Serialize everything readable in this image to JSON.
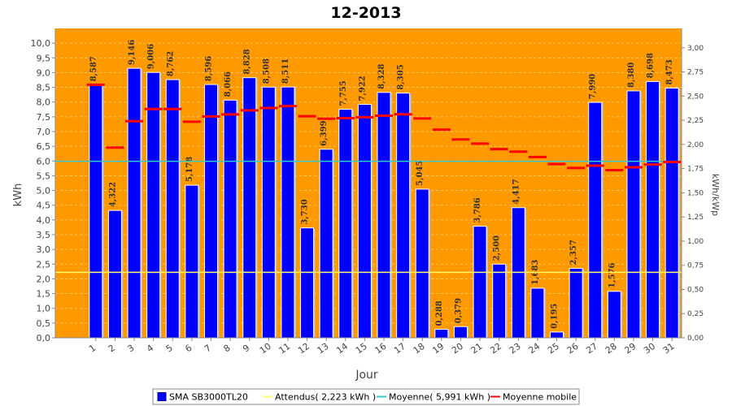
{
  "chart_data": {
    "type": "bar",
    "title": "12-2013",
    "xlabel": "Jour",
    "ylabel": "kWh",
    "y2label": "kWh/kWp",
    "ylim": [
      0,
      10.5
    ],
    "y2lim": [
      0,
      3.2
    ],
    "grid": true,
    "legend_position": "bottom",
    "categories": [
      "1",
      "2",
      "3",
      "4",
      "5",
      "6",
      "7",
      "8",
      "9",
      "10",
      "11",
      "12",
      "13",
      "14",
      "15",
      "16",
      "17",
      "18",
      "19",
      "20",
      "21",
      "22",
      "23",
      "24",
      "25",
      "26",
      "27",
      "28",
      "29",
      "30",
      "31"
    ],
    "series": [
      {
        "name": "SMA SB3000TL20",
        "type": "bar",
        "color": "#0000ff",
        "values": [
          8.587,
          4.322,
          9.146,
          9.006,
          8.762,
          5.178,
          8.596,
          8.066,
          8.828,
          8.508,
          8.511,
          3.73,
          6.399,
          7.755,
          7.922,
          8.328,
          8.305,
          5.045,
          0.288,
          0.379,
          3.786,
          2.5,
          4.417,
          1.683,
          0.195,
          2.357,
          7.99,
          1.576,
          8.38,
          8.698,
          8.473
        ],
        "data_labels": [
          "8,587",
          "4,322",
          "9,146",
          "9,006",
          "8,762",
          "5,178",
          "8,596",
          "8,066",
          "8,828",
          "8,508",
          "8,511",
          "3,730",
          "6,399",
          "7,755",
          "7,922",
          "8,328",
          "8,305",
          "5,045",
          "0,288",
          "0,379",
          "3,786",
          "2,500",
          "4,417",
          "1,683",
          "0,195",
          "2,357",
          "7,990",
          "1,576",
          "8,380",
          "8,698",
          "8,473"
        ]
      },
      {
        "name": "Attendus( 2,223 kWh )",
        "type": "line",
        "color": "#ffff66",
        "value": 2.223
      },
      {
        "name": "Moyenne( 5,991 kWh )",
        "type": "line",
        "color": "#33cccc",
        "value": 5.991
      },
      {
        "name": "Moyenne mobile",
        "type": "marker",
        "color": "#ff0000",
        "values": [
          8.587,
          6.455,
          7.352,
          7.765,
          7.764,
          7.333,
          7.513,
          7.582,
          7.721,
          7.799,
          7.864,
          7.519,
          7.433,
          7.456,
          7.487,
          7.539,
          7.584,
          7.443,
          7.066,
          6.731,
          6.591,
          6.405,
          6.318,
          6.136,
          5.898,
          5.762,
          5.844,
          5.692,
          5.786,
          5.882,
          5.965
        ]
      }
    ],
    "y_ticks": [
      "0,0",
      "0,5",
      "1,0",
      "1,5",
      "2,0",
      "2,5",
      "3,0",
      "3,5",
      "4,0",
      "4,5",
      "5,0",
      "5,5",
      "6,0",
      "6,5",
      "7,0",
      "7,5",
      "8,0",
      "8,5",
      "9,0",
      "9,5",
      "10,0"
    ],
    "y2_ticks": [
      "0,00",
      "0,25",
      "0,50",
      "0,75",
      "1,00",
      "1,25",
      "1,50",
      "1,75",
      "2,00",
      "2,25",
      "2,50",
      "2,75",
      "3,00"
    ],
    "colors": {
      "plot_background": "#ff9900",
      "grid": "#ffd27f",
      "bar_edge": "#000099"
    }
  }
}
